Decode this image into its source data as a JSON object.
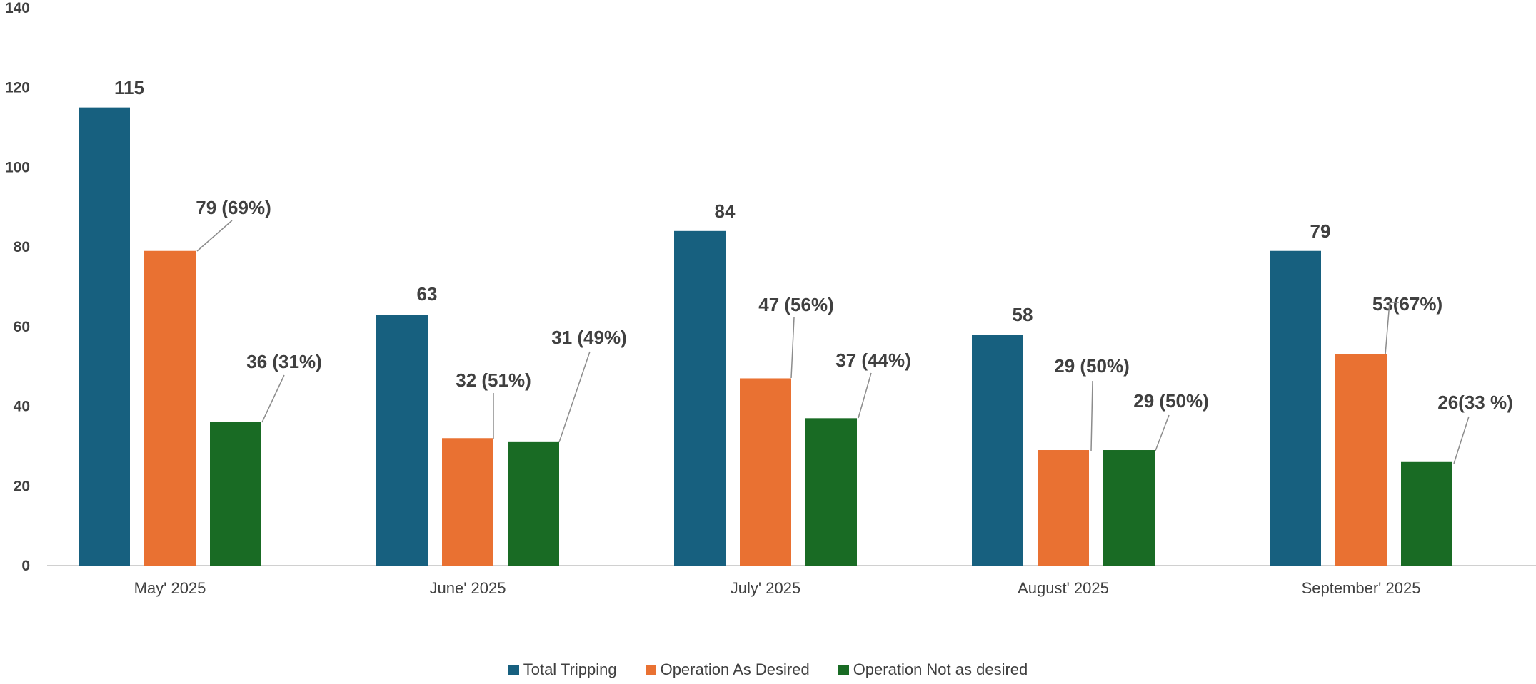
{
  "chart_data": {
    "type": "bar",
    "categories": [
      "May' 2025",
      "June' 2025",
      "July' 2025",
      "August' 2025",
      "September' 2025"
    ],
    "series": [
      {
        "name": "Total Tripping",
        "color": "#17607f",
        "values": [
          115,
          63,
          84,
          58,
          79
        ],
        "labels": [
          "115",
          "63",
          "84",
          "58",
          "79"
        ]
      },
      {
        "name": "Operation As Desired",
        "color": "#e97132",
        "values": [
          79,
          32,
          47,
          29,
          53
        ],
        "labels": [
          "79 (69%)",
          "32 (51%)",
          "47 (56%)",
          "29 (50%)",
          "53(67%)"
        ]
      },
      {
        "name": "Operation Not as desired",
        "color": "#196b24",
        "values": [
          36,
          31,
          37,
          29,
          26
        ],
        "labels": [
          "36 (31%)",
          "31 (49%)",
          "37 (44%)",
          "29 (50%)",
          "26(33 %)"
        ]
      }
    ],
    "ylim": [
      0,
      140
    ],
    "yticks": [
      0,
      20,
      40,
      60,
      80,
      100,
      120,
      140
    ],
    "grid": false,
    "legend": "bottom-center"
  }
}
